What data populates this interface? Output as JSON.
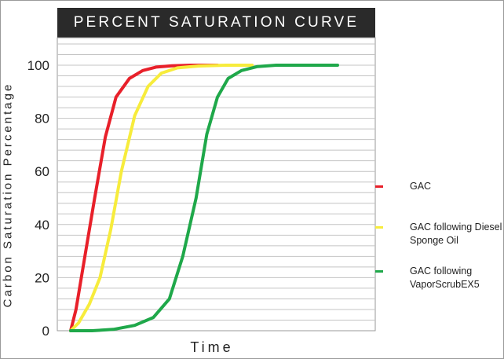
{
  "chart_data": {
    "type": "line",
    "title": "PERCENT SATURATION CURVE",
    "xlabel": "Time",
    "ylabel": "Carbon Saturation Percentage",
    "ylim": [
      0,
      100
    ],
    "yticks": [
      0,
      20,
      40,
      60,
      80,
      100
    ],
    "xlim": [
      0,
      100
    ],
    "grid": true,
    "legend_position": "right",
    "series": [
      {
        "name": "GAC",
        "color": "#e8202a",
        "x": [
          0,
          2,
          5,
          9,
          13,
          17,
          22,
          27,
          32,
          38,
          45,
          55
        ],
        "y": [
          0,
          8,
          26,
          50,
          73,
          88,
          95,
          98,
          99.3,
          99.8,
          100,
          100
        ]
      },
      {
        "name": "GAC following Diesel Sponge Oil",
        "color": "#f7ec3c",
        "x": [
          0,
          3,
          7,
          11,
          15,
          19,
          24,
          29,
          34,
          40,
          48,
          58,
          68
        ],
        "y": [
          0,
          3,
          10,
          20,
          38,
          60,
          81,
          92,
          97,
          99,
          99.7,
          100,
          100
        ]
      },
      {
        "name": "GAC following VaporScrubEX5",
        "color": "#1fa84a",
        "x": [
          0,
          8,
          16,
          24,
          31,
          37,
          42,
          47,
          51,
          55,
          59,
          64,
          70,
          77,
          84,
          92,
          100
        ],
        "y": [
          0,
          0,
          0.5,
          2,
          5,
          12,
          28,
          50,
          74,
          88,
          95,
          98,
          99.5,
          100,
          100,
          100,
          100
        ]
      }
    ]
  },
  "legend": [
    {
      "line1": "GAC",
      "line2": ""
    },
    {
      "line1": "GAC following Diesel",
      "line2": "Sponge Oil"
    },
    {
      "line1": "GAC following",
      "line2": "VaporScrubEX5"
    }
  ]
}
